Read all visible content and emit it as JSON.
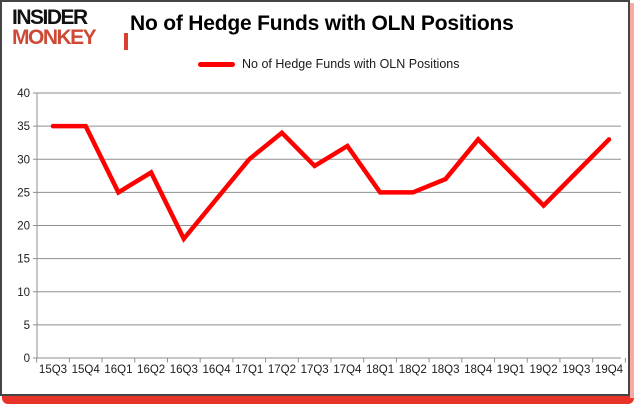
{
  "logo": {
    "line1": "INSIDER",
    "line2": "MONKEY"
  },
  "header": {
    "title": "No of Hedge Funds with OLN Positions"
  },
  "legend": {
    "label": "No of Hedge Funds with OLN Positions",
    "swatch_color": "#ff0000"
  },
  "colors": {
    "line": "#ff0000",
    "logo_red": "#cf4a36",
    "frame_bottom_red": "#e93228",
    "frame_right_pink": "#f6aca4",
    "gridline_gray": "#8f8f8f"
  },
  "chart_data": {
    "type": "line",
    "title": "No of Hedge Funds with OLN Positions",
    "categories": [
      "15Q3",
      "15Q4",
      "16Q1",
      "16Q2",
      "16Q3",
      "16Q4",
      "17Q1",
      "17Q2",
      "17Q3",
      "17Q4",
      "18Q1",
      "18Q2",
      "18Q3",
      "18Q4",
      "19Q1",
      "19Q2",
      "19Q3",
      "19Q4"
    ],
    "series": [
      {
        "name": "No of Hedge Funds with OLN Positions",
        "color": "#ff0000",
        "values": [
          35,
          35,
          25,
          28,
          18,
          24,
          30,
          34,
          29,
          32,
          25,
          25,
          27,
          33,
          28,
          23,
          28,
          33
        ]
      }
    ],
    "xlabel": "",
    "ylabel": "",
    "ylim": [
      0,
      40
    ],
    "ytick_step": 5,
    "grid": "horizontal",
    "legend_position": "top-center"
  }
}
